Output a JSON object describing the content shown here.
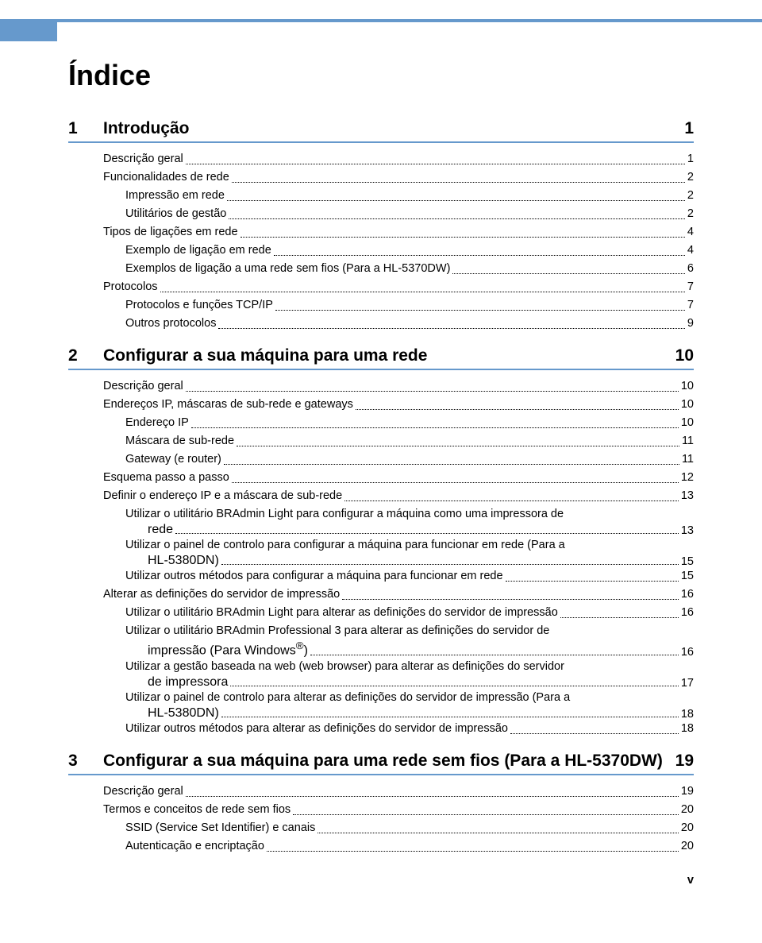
{
  "colors": {
    "accent": "#6699cc",
    "text": "#000000",
    "background": "#ffffff"
  },
  "title": "Índice",
  "pageNumber": "v",
  "sections": [
    {
      "num": "1",
      "title": "Introdução",
      "page": "1",
      "entries": [
        {
          "level": 0,
          "text": "Descrição geral",
          "page": "1"
        },
        {
          "level": 0,
          "text": "Funcionalidades de rede",
          "page": "2"
        },
        {
          "level": 1,
          "text": "Impressão em rede",
          "page": "2"
        },
        {
          "level": 1,
          "text": "Utilitários de gestão",
          "page": "2"
        },
        {
          "level": 0,
          "text": "Tipos de ligações em rede",
          "page": "4"
        },
        {
          "level": 1,
          "text": "Exemplo de ligação em rede",
          "page": "4"
        },
        {
          "level": 1,
          "text": "Exemplos de ligação a uma rede sem fios (Para a HL-5370DW)",
          "page": "6"
        },
        {
          "level": 0,
          "text": "Protocolos",
          "page": "7"
        },
        {
          "level": 1,
          "text": "Protocolos e funções TCP/IP",
          "page": "7"
        },
        {
          "level": 1,
          "text": "Outros protocolos",
          "page": "9"
        }
      ]
    },
    {
      "num": "2",
      "title": "Configurar a sua máquina para uma rede",
      "page": "10",
      "entries": [
        {
          "level": 0,
          "text": "Descrição geral",
          "page": "10"
        },
        {
          "level": 0,
          "text": "Endereços IP, máscaras de sub-rede e gateways",
          "page": "10"
        },
        {
          "level": 1,
          "text": "Endereço IP",
          "page": "10"
        },
        {
          "level": 1,
          "text": "Máscara de sub-rede",
          "page": "11"
        },
        {
          "level": 1,
          "text": "Gateway (e router)",
          "page": "11"
        },
        {
          "level": 0,
          "text": "Esquema passo a passo",
          "page": "12"
        },
        {
          "level": 0,
          "text": "Definir o endereço IP e a máscara de sub-rede",
          "page": "13"
        },
        {
          "level": 1,
          "wrap": true,
          "line1": "Utilizar o utilitário BRAdmin Light para configurar a máquina como uma impressora de",
          "line2": "rede",
          "page": "13"
        },
        {
          "level": 1,
          "wrap": true,
          "line1": "Utilizar o painel de controlo para configurar a máquina para funcionar em rede (Para a",
          "line2": "HL-5380DN)",
          "page": "15"
        },
        {
          "level": 1,
          "text": "Utilizar outros métodos para configurar a máquina para funcionar em rede",
          "page": "15"
        },
        {
          "level": 0,
          "text": "Alterar as definições do servidor de impressão",
          "page": "16"
        },
        {
          "level": 1,
          "text": "Utilizar o utilitário BRAdmin Light para alterar as definições do servidor de impressão",
          "page": "16"
        },
        {
          "level": 1,
          "wrap": true,
          "line1": "Utilizar o utilitário BRAdmin Professional 3 para alterar as definições do servidor de",
          "line2_html": "impressão (Para Windows<sup>®</sup>)",
          "page": "16"
        },
        {
          "level": 1,
          "wrap": true,
          "line1": "Utilizar a gestão baseada na web (web browser) para alterar as definições do servidor",
          "line2": "de impressora",
          "page": "17"
        },
        {
          "level": 1,
          "wrap": true,
          "line1": "Utilizar o painel de controlo para alterar as definições do servidor de impressão (Para a",
          "line2": "HL-5380DN)",
          "page": "18"
        },
        {
          "level": 1,
          "text": "Utilizar outros métodos para alterar as definições do servidor de impressão",
          "page": "18"
        }
      ]
    },
    {
      "num": "3",
      "title": "Configurar a sua máquina para uma rede sem fios (Para a HL-5370DW)",
      "page": "19",
      "entries": [
        {
          "level": 0,
          "text": "Descrição geral",
          "page": "19"
        },
        {
          "level": 0,
          "text": "Termos e conceitos de rede sem fios",
          "page": "20"
        },
        {
          "level": 1,
          "text": "SSID (Service Set Identifier) e canais",
          "page": "20"
        },
        {
          "level": 1,
          "text": "Autenticação e encriptação",
          "page": "20"
        }
      ]
    }
  ]
}
